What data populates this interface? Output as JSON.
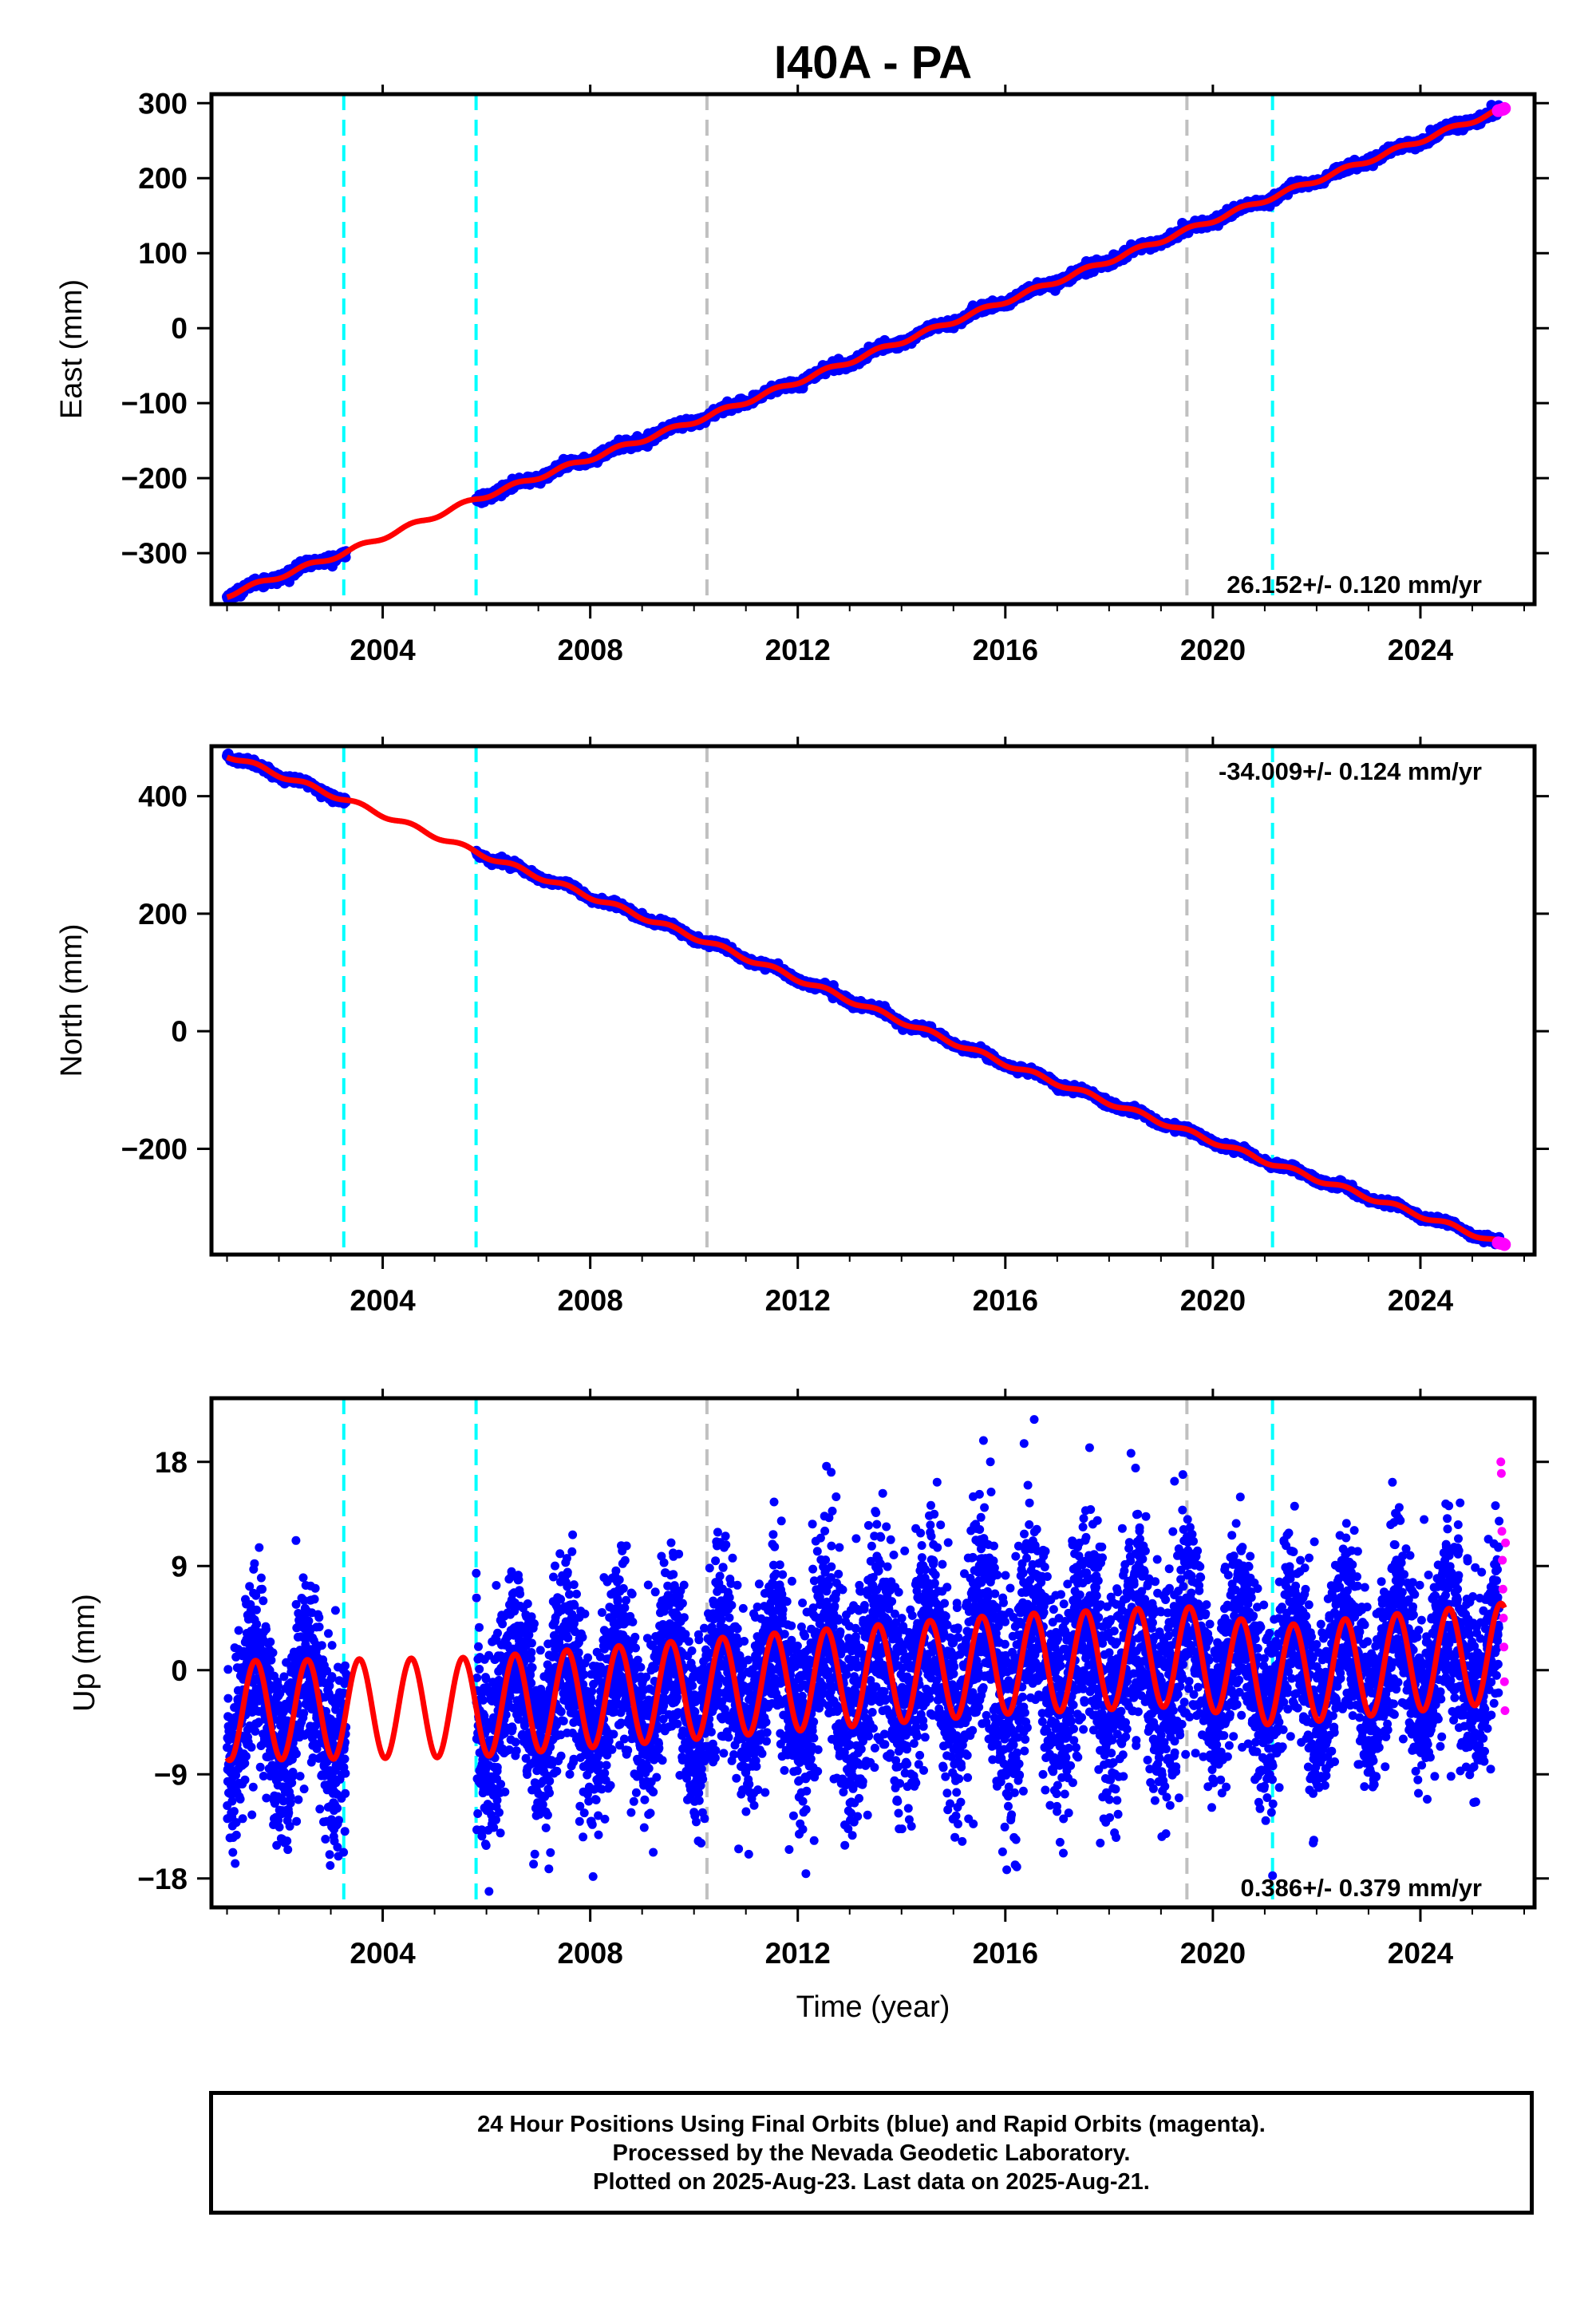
{
  "title": "I40A - PA",
  "footnote": [
    "24 Hour Positions Using Final Orbits (blue) and Rapid Orbits (magenta).",
    "Processed by the Nevada Geodetic Laboratory.",
    "Plotted on 2025-Aug-23. Last data on 2025-Aug-21."
  ],
  "colors": {
    "final_orbits": "#0000ff",
    "rapid_orbits": "#ff00ff",
    "model": "#ff0000",
    "equipment_change": "#00ffff",
    "earthquake": "#c0c0c0"
  },
  "chart_data": [
    {
      "type": "scatter",
      "ylabel": "East (mm)",
      "xlabel": "",
      "xlim": [
        2000.7,
        2026.2
      ],
      "ylim": [
        -368,
        312
      ],
      "xticks": [
        2004,
        2008,
        2012,
        2016,
        2020,
        2024
      ],
      "yticks": [
        -300,
        -200,
        -100,
        0,
        100,
        200,
        300
      ],
      "vlines_cyan": [
        2003.25,
        2005.8,
        2021.15
      ],
      "vlines_gray": [
        2010.25,
        2019.5
      ],
      "rate_text": "26.152+/- 0.120 mm/yr",
      "rate_pos": "bottom-right",
      "trend": {
        "x": [
          2001.0,
          2003.25,
          2005.8,
          2010.25,
          2016.0,
          2021.15,
          2025.62
        ],
        "y": [
          -356,
          -300,
          -228,
          -118,
          36,
          175,
          293
        ]
      },
      "gap": [
        2003.3,
        2005.8
      ],
      "seasonal_amp": 3,
      "noise": 3,
      "rapid": {
        "x": [
          2025.5,
          2025.55,
          2025.6,
          2025.62
        ],
        "y": [
          290,
          291,
          292,
          293
        ]
      }
    },
    {
      "type": "scatter",
      "ylabel": "North (mm)",
      "xlabel": "",
      "xlim": [
        2000.7,
        2026.2
      ],
      "ylim": [
        -380,
        485
      ],
      "xticks": [
        2004,
        2008,
        2012,
        2016,
        2020,
        2024
      ],
      "yticks": [
        -200,
        0,
        200,
        400
      ],
      "vlines_cyan": [
        2003.25,
        2005.8,
        2021.15
      ],
      "vlines_gray": [
        2010.25,
        2019.5
      ],
      "rate_text": "-34.009+/- 0.124 mm/yr",
      "rate_pos": "top-right",
      "trend": {
        "x": [
          2001.0,
          2003.25,
          2005.8,
          2010.25,
          2016.0,
          2021.15,
          2025.62
        ],
        "y": [
          470,
          395,
          305,
          152,
          -55,
          -225,
          -363
        ]
      },
      "gap": [
        2003.3,
        2005.8
      ],
      "seasonal_amp": 4,
      "noise": 3,
      "rapid": {
        "x": [
          2025.5,
          2025.55,
          2025.6,
          2025.62
        ],
        "y": [
          -360,
          -361,
          -362,
          -363
        ]
      }
    },
    {
      "type": "scatter",
      "ylabel": "Up (mm)",
      "xlabel": "Time (year)",
      "xlim": [
        2000.7,
        2026.2
      ],
      "ylim": [
        -20.5,
        23.5
      ],
      "xticks": [
        2004,
        2008,
        2012,
        2016,
        2020,
        2024
      ],
      "yticks": [
        -18,
        -9,
        0,
        9,
        18
      ],
      "vlines_cyan": [
        2003.25,
        2005.8,
        2021.15
      ],
      "vlines_gray": [
        2010.25,
        2019.5
      ],
      "rate_text": "0.386+/- 0.379 mm/yr",
      "rate_pos": "bottom-right",
      "trend": {
        "x": [
          2001.0,
          2005.8,
          2016.0,
          2019.5,
          2021.15,
          2025.62
        ],
        "y": [
          -3.5,
          -3.2,
          0.5,
          1.2,
          -0.5,
          1.5
        ]
      },
      "gap": [
        2003.3,
        2005.8
      ],
      "seasonal_amp": 4.3,
      "noise": 4.0,
      "rapid": {
        "x": [
          2025.55,
          2025.56,
          2025.57,
          2025.58,
          2025.59,
          2025.6,
          2025.61,
          2025.62,
          2025.63,
          2025.64
        ],
        "y": [
          18.0,
          17.0,
          12.0,
          9.5,
          7.0,
          4.5,
          2.0,
          -1.0,
          -3.5,
          11.0
        ]
      }
    }
  ]
}
